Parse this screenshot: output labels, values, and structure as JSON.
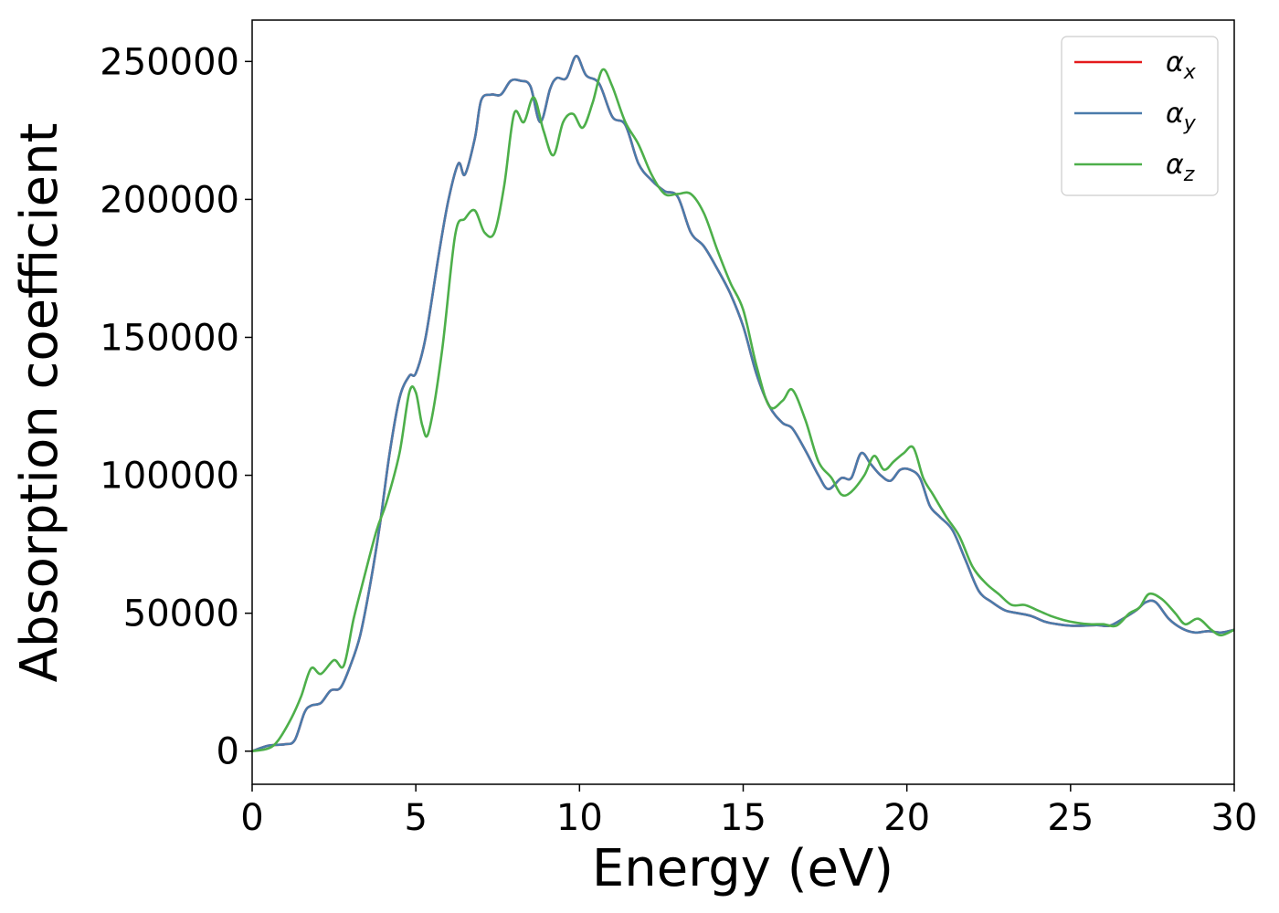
{
  "chart_data": {
    "type": "line",
    "xlabel": "Energy (eV)",
    "ylabel": "Absorption coefficient",
    "xlim": [
      0,
      30
    ],
    "ylim": [
      -12000,
      265000
    ],
    "xticks": [
      0,
      5,
      10,
      15,
      20,
      25,
      30
    ],
    "yticks": [
      0,
      50000,
      100000,
      150000,
      200000,
      250000
    ],
    "grid": false,
    "legend_position": "top-right",
    "series": [
      {
        "name": "αx",
        "symbol": "α",
        "subscript": "x",
        "color": "#e41a1c",
        "x": [
          0,
          0.5,
          1.0,
          1.3,
          1.6,
          1.8,
          2.1,
          2.4,
          2.7,
          3.0,
          3.3,
          3.6,
          3.9,
          4.2,
          4.5,
          4.8,
          5.0,
          5.3,
          5.7,
          6.0,
          6.3,
          6.5,
          6.8,
          7.0,
          7.3,
          7.6,
          7.9,
          8.2,
          8.5,
          8.8,
          9.1,
          9.3,
          9.6,
          9.9,
          10.2,
          10.6,
          11.0,
          11.4,
          11.8,
          12.2,
          12.6,
          13.0,
          13.4,
          13.8,
          14.2,
          14.6,
          15.0,
          15.4,
          15.8,
          16.2,
          16.5,
          16.9,
          17.3,
          17.6,
          18.0,
          18.3,
          18.6,
          18.9,
          19.2,
          19.5,
          19.8,
          20.1,
          20.4,
          20.7,
          21.0,
          21.4,
          21.8,
          22.2,
          22.6,
          23.0,
          23.4,
          23.8,
          24.2,
          24.6,
          25.0,
          25.4,
          25.8,
          26.2,
          26.6,
          27.0,
          27.3,
          27.6,
          28.0,
          28.4,
          28.8,
          29.2,
          29.6,
          30.0
        ],
        "y": [
          0,
          2000,
          2500,
          4000,
          14000,
          16500,
          17500,
          22000,
          23000,
          31000,
          42000,
          60000,
          82000,
          108000,
          128000,
          136000,
          137000,
          150000,
          180000,
          200000,
          213000,
          209000,
          222000,
          236000,
          238000,
          238000,
          243000,
          243000,
          241000,
          228000,
          240000,
          244000,
          244000,
          252000,
          245000,
          242000,
          230000,
          227000,
          213000,
          207000,
          203000,
          201000,
          188000,
          183000,
          175000,
          166000,
          154000,
          137000,
          125000,
          119000,
          117000,
          109000,
          100000,
          95000,
          99000,
          99000,
          108000,
          104000,
          100000,
          98000,
          102000,
          102000,
          99000,
          89000,
          85000,
          80000,
          69000,
          58000,
          54000,
          51000,
          50000,
          49000,
          47000,
          46000,
          45500,
          45500,
          45700,
          45500,
          48000,
          51000,
          54000,
          54000,
          48000,
          44500,
          43000,
          43500,
          43000,
          44000
        ]
      },
      {
        "name": "αy",
        "symbol": "α",
        "subscript": "y",
        "color": "#4a7bab",
        "x": [
          0,
          0.5,
          1.0,
          1.3,
          1.6,
          1.8,
          2.1,
          2.4,
          2.7,
          3.0,
          3.3,
          3.6,
          3.9,
          4.2,
          4.5,
          4.8,
          5.0,
          5.3,
          5.7,
          6.0,
          6.3,
          6.5,
          6.8,
          7.0,
          7.3,
          7.6,
          7.9,
          8.2,
          8.5,
          8.8,
          9.1,
          9.3,
          9.6,
          9.9,
          10.2,
          10.6,
          11.0,
          11.4,
          11.8,
          12.2,
          12.6,
          13.0,
          13.4,
          13.8,
          14.2,
          14.6,
          15.0,
          15.4,
          15.8,
          16.2,
          16.5,
          16.9,
          17.3,
          17.6,
          18.0,
          18.3,
          18.6,
          18.9,
          19.2,
          19.5,
          19.8,
          20.1,
          20.4,
          20.7,
          21.0,
          21.4,
          21.8,
          22.2,
          22.6,
          23.0,
          23.4,
          23.8,
          24.2,
          24.6,
          25.0,
          25.4,
          25.8,
          26.2,
          26.6,
          27.0,
          27.3,
          27.6,
          28.0,
          28.4,
          28.8,
          29.2,
          29.6,
          30.0
        ],
        "y": [
          0,
          2000,
          2500,
          4000,
          14000,
          16500,
          17500,
          22000,
          23000,
          31000,
          42000,
          60000,
          82000,
          108000,
          128000,
          136000,
          137000,
          150000,
          180000,
          200000,
          213000,
          209000,
          222000,
          236000,
          238000,
          238000,
          243000,
          243000,
          241000,
          228000,
          240000,
          244000,
          244000,
          252000,
          245000,
          242000,
          230000,
          227000,
          213000,
          207000,
          203000,
          201000,
          188000,
          183000,
          175000,
          166000,
          154000,
          137000,
          125000,
          119000,
          117000,
          109000,
          100000,
          95000,
          99000,
          99000,
          108000,
          104000,
          100000,
          98000,
          102000,
          102000,
          99000,
          89000,
          85000,
          80000,
          69000,
          58000,
          54000,
          51000,
          50000,
          49000,
          47000,
          46000,
          45500,
          45500,
          45700,
          45500,
          48000,
          51000,
          54000,
          54000,
          48000,
          44500,
          43000,
          43500,
          43000,
          44000
        ]
      },
      {
        "name": "αz",
        "symbol": "α",
        "subscript": "z",
        "color": "#4daf4a",
        "x": [
          0,
          0.5,
          0.8,
          1.2,
          1.5,
          1.8,
          2.1,
          2.5,
          2.8,
          3.1,
          3.4,
          3.8,
          4.1,
          4.5,
          4.8,
          5.0,
          5.2,
          5.4,
          5.8,
          6.2,
          6.5,
          6.8,
          7.1,
          7.4,
          7.7,
          8.0,
          8.3,
          8.6,
          8.9,
          9.2,
          9.5,
          9.8,
          10.1,
          10.4,
          10.7,
          11.0,
          11.4,
          11.8,
          12.2,
          12.6,
          13.0,
          13.4,
          13.8,
          14.2,
          14.6,
          15.0,
          15.4,
          15.8,
          16.2,
          16.5,
          16.9,
          17.3,
          17.7,
          18.0,
          18.3,
          18.7,
          19.0,
          19.3,
          19.6,
          19.9,
          20.2,
          20.5,
          20.8,
          21.2,
          21.6,
          22.0,
          22.4,
          22.8,
          23.2,
          23.6,
          24.0,
          24.4,
          24.8,
          25.2,
          25.6,
          26.0,
          26.4,
          26.8,
          27.1,
          27.4,
          27.8,
          28.2,
          28.5,
          28.9,
          29.3,
          29.6,
          30.0
        ],
        "y": [
          0,
          1000,
          4000,
          12000,
          20000,
          30000,
          28000,
          33000,
          31000,
          48000,
          62000,
          80000,
          90000,
          108000,
          130000,
          130000,
          118000,
          116000,
          145000,
          187000,
          193000,
          196000,
          188000,
          188000,
          205000,
          231000,
          228000,
          237000,
          225000,
          216000,
          228000,
          231000,
          226000,
          235000,
          247000,
          241000,
          228000,
          220000,
          209000,
          202000,
          202000,
          202000,
          195000,
          182000,
          170000,
          160000,
          140000,
          125000,
          127000,
          131000,
          120000,
          105000,
          99000,
          93000,
          94000,
          100000,
          107000,
          102000,
          105000,
          108000,
          110000,
          99000,
          93000,
          85000,
          78000,
          67000,
          61000,
          57000,
          53000,
          53000,
          51000,
          49000,
          47500,
          46500,
          46000,
          46000,
          45500,
          50000,
          52000,
          57000,
          55000,
          50000,
          46000,
          48000,
          44000,
          42000,
          44000
        ]
      }
    ]
  }
}
